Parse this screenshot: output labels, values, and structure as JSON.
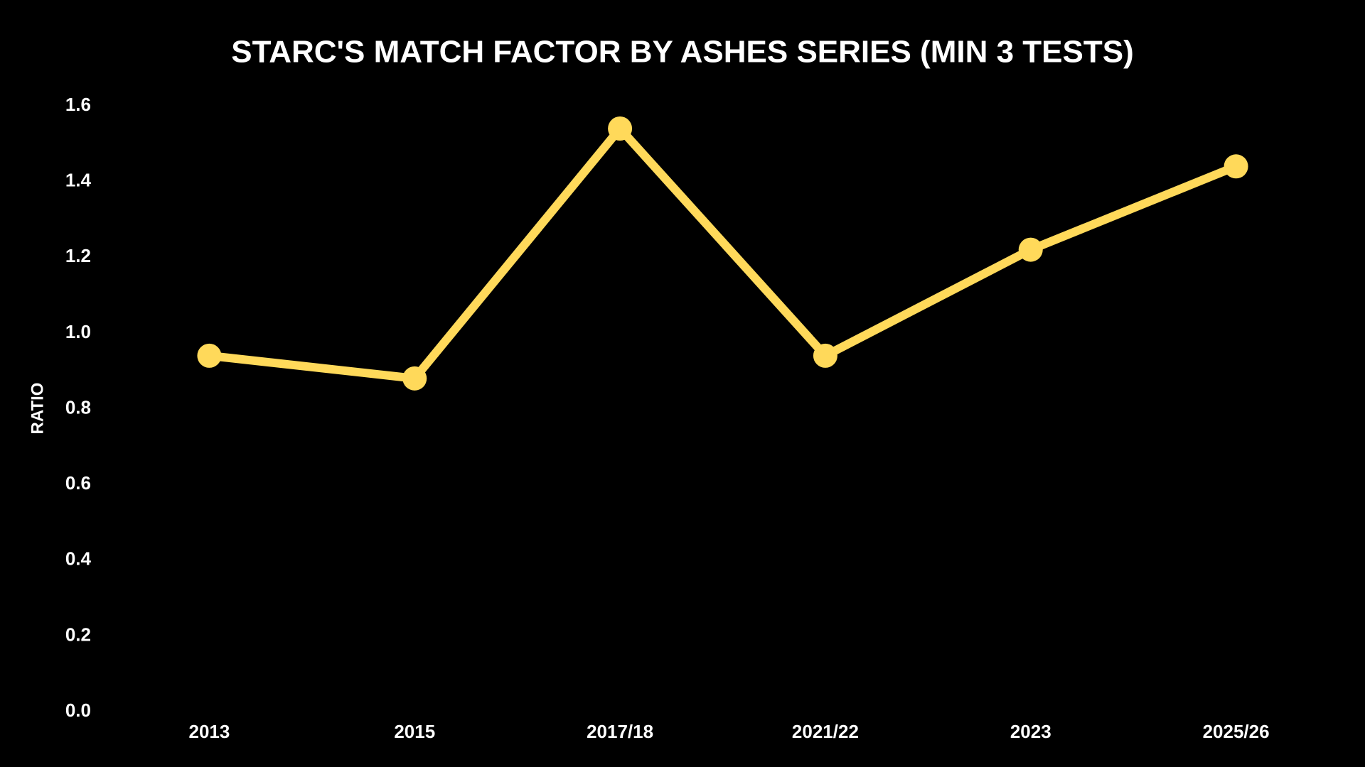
{
  "chart_data": {
    "type": "line",
    "title": "STARC'S MATCH FACTOR BY ASHES SERIES (MIN 3 TESTS)",
    "y_label": "RATIO",
    "categories": [
      "2013",
      "2015",
      "2017/18",
      "2021/22",
      "2023",
      "2025/26"
    ],
    "values": [
      0.94,
      0.88,
      1.54,
      0.94,
      1.22,
      1.44
    ],
    "color": "#ffd95a",
    "ylim": [
      0,
      1.6
    ],
    "yticks": [
      {
        "value": 0,
        "label": "0.0"
      },
      0.2,
      0.4,
      0.6,
      0.8,
      {
        "value": 1,
        "label": "1.0"
      },
      1.2,
      1.4,
      1.6
    ]
  }
}
